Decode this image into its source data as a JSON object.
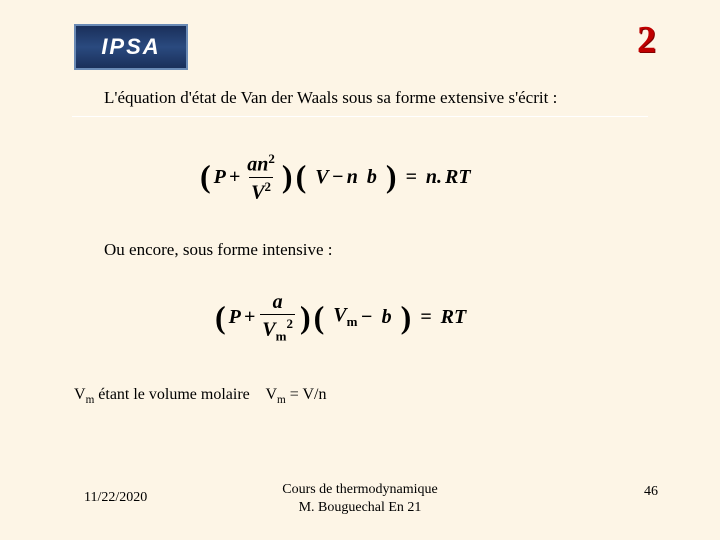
{
  "logo": {
    "text": "IPSA"
  },
  "page_number_decor": "2",
  "title": "L'équation d'état de Van der Waals sous sa forme extensive s'écrit :",
  "eq1": {
    "P": "P",
    "plus": "+",
    "num": "an",
    "num_exp": "2",
    "den": "V",
    "den_exp": "2",
    "V": "V",
    "minus": "−",
    "n": "n",
    "b": "b",
    "eq": "=",
    "rhs_n": "n.",
    "rhs_RT": "RT"
  },
  "subtitle": "Ou encore, sous forme intensive :",
  "eq2": {
    "P": "P",
    "plus": "+",
    "num": "a",
    "den_V": "V",
    "den_sub": "m",
    "den_exp": "2",
    "Vm_V": "V",
    "Vm_sub": "m",
    "minus": "−",
    "b": "b",
    "eq": "=",
    "rhs": "RT"
  },
  "vm_note": {
    "v": "V",
    "m": "m",
    "mid": " étant le volume molaire    ",
    "v2": "V",
    "m2": "m",
    "tail": " = V/n"
  },
  "footer": {
    "date": "11/22/2020",
    "line1": "Cours de thermodynamique",
    "line2": "M. Bouguechal  En 21",
    "page": "46"
  }
}
